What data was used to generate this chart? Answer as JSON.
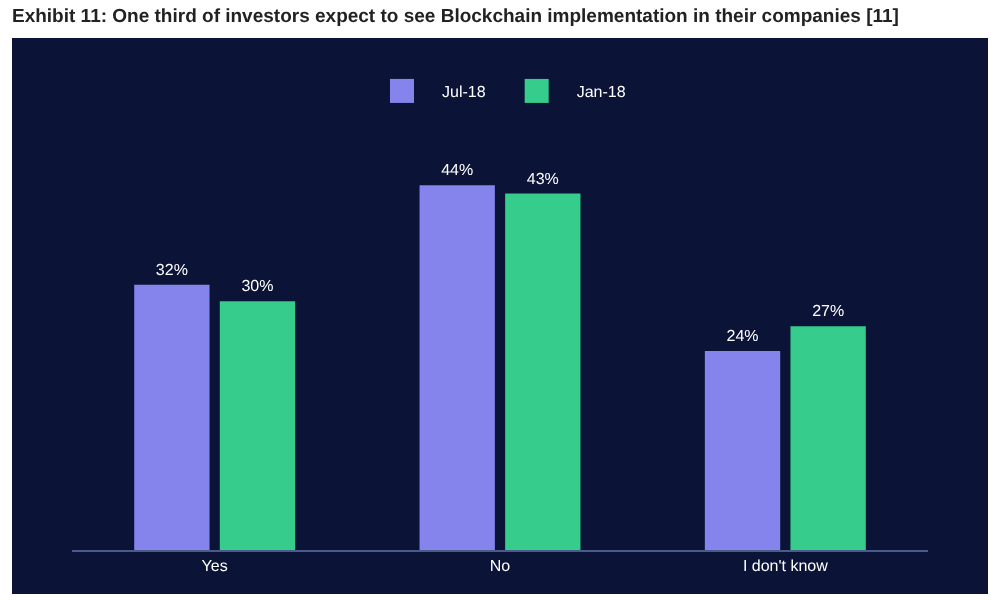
{
  "chart_data": {
    "type": "bar",
    "title": "Exhibit 11: One third of investors expect to see Blockchain implementation in their companies [11]",
    "categories": [
      "Yes",
      "No",
      "I don't know"
    ],
    "series": [
      {
        "name": "Jul-18",
        "color": "#8484ec",
        "values": [
          32,
          44,
          24
        ],
        "value_labels": [
          "32%",
          "44%",
          "24%"
        ]
      },
      {
        "name": "Jan-18",
        "color": "#35cc8c",
        "values": [
          30,
          43,
          27
        ],
        "value_labels": [
          "30%",
          "43%",
          "27%"
        ]
      }
    ],
    "legend": "top",
    "grid": false
  }
}
